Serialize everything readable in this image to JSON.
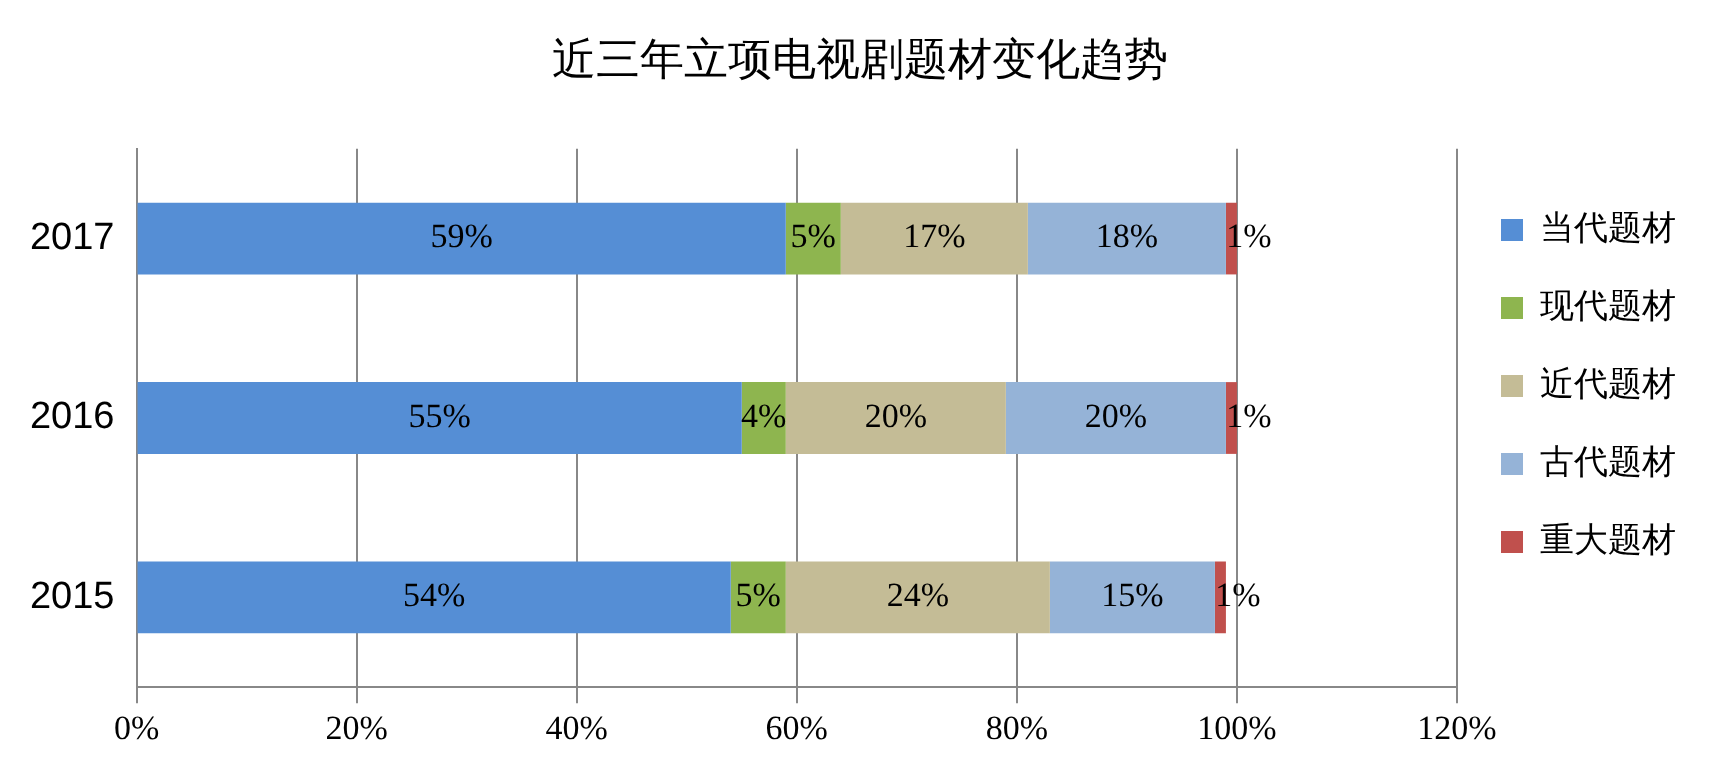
{
  "chart_data": {
    "type": "bar",
    "orientation": "horizontal",
    "stacked": true,
    "title": "近三年立项电视剧题材变化趋势",
    "categories": [
      "2017",
      "2016",
      "2015"
    ],
    "series": [
      {
        "name": "当代题材",
        "color": "#558ed5",
        "values": [
          59,
          55,
          54
        ],
        "value_labels": [
          "59%",
          "55%",
          "54%"
        ]
      },
      {
        "name": "现代题材",
        "color": "#8eb54f",
        "values": [
          5,
          4,
          5
        ],
        "value_labels": [
          "5%",
          "4%",
          "5%"
        ]
      },
      {
        "name": "近代题材",
        "color": "#c4bc96",
        "values": [
          17,
          20,
          24
        ],
        "value_labels": [
          "17%",
          "20%",
          "24%"
        ]
      },
      {
        "name": "古代题材",
        "color": "#95b3d7",
        "values": [
          18,
          20,
          15
        ],
        "value_labels": [
          "18%",
          "20%",
          "15%"
        ]
      },
      {
        "name": "重大题材",
        "color": "#c0504d",
        "values": [
          1,
          1,
          1
        ],
        "value_labels": [
          "1%",
          "1%",
          "1%"
        ]
      }
    ],
    "xlim": [
      0,
      120
    ],
    "xticks": [
      {
        "value": 0,
        "label": "0%"
      },
      {
        "value": 20,
        "label": "20%"
      },
      {
        "value": 40,
        "label": "40%"
      },
      {
        "value": 60,
        "label": "60%"
      },
      {
        "value": 80,
        "label": "80%"
      },
      {
        "value": 100,
        "label": "100%"
      },
      {
        "value": 120,
        "label": "120%"
      }
    ],
    "grid": "x",
    "legend": "right"
  }
}
